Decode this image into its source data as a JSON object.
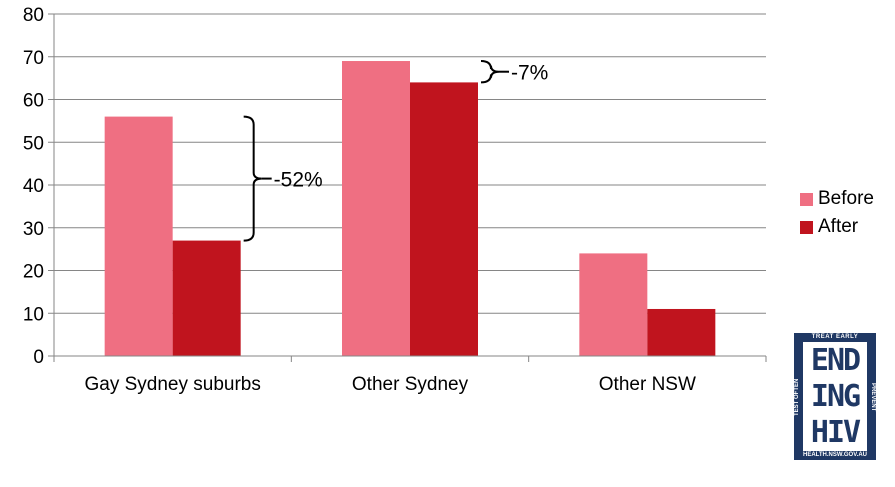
{
  "chart_data": {
    "type": "bar",
    "categories": [
      "Gay Sydney suburbs",
      "Other Sydney",
      "Other NSW"
    ],
    "series": [
      {
        "name": "Before",
        "values": [
          56,
          69,
          24
        ],
        "color": "#ef6f82"
      },
      {
        "name": "After",
        "values": [
          27,
          64,
          11
        ],
        "color": "#c0141e"
      }
    ],
    "ylim": [
      0,
      80
    ],
    "yticks": [
      0,
      10,
      20,
      30,
      40,
      50,
      60,
      70,
      80
    ],
    "grid": true,
    "legend": "right",
    "annotations": [
      {
        "category": "Gay Sydney suburbs",
        "text": "-52%",
        "from": 27,
        "to": 56
      },
      {
        "category": "Other Sydney",
        "text": "-7%",
        "from": 64,
        "to": 69
      }
    ]
  },
  "logo": {
    "top_text": "TREAT EARLY",
    "left_text": "TEST OFTEN",
    "right_text": "PREVENT",
    "rows": [
      "END",
      "ING",
      "HIV"
    ],
    "bottom_text": "HEALTH.NSW.GOV.AU",
    "color": "#1f3864"
  }
}
